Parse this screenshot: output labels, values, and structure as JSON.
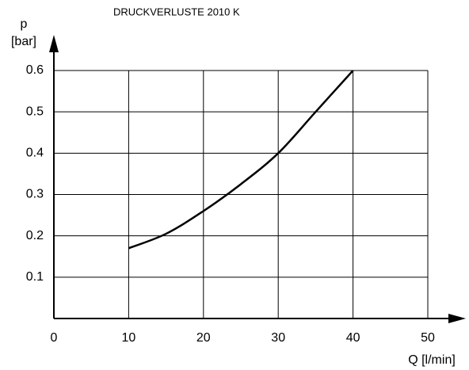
{
  "chart_data": {
    "type": "line",
    "title": "DRUCKVERLUSTE 2010 K",
    "ylabel": "p",
    "yunit": "[bar]",
    "xlabel": "Q [l/min]",
    "x": [
      10,
      15,
      20,
      25,
      30,
      35,
      40
    ],
    "series": [
      {
        "name": "2010 K",
        "color": "#000000",
        "values": [
          0.17,
          0.205,
          0.26,
          0.325,
          0.4,
          0.5,
          0.6
        ]
      }
    ],
    "xlim": [
      0,
      50
    ],
    "xticks": [
      0,
      10,
      20,
      30,
      40,
      50
    ],
    "ylim": [
      0,
      0.6
    ],
    "yticks": [
      0.1,
      0.2,
      0.3,
      0.4,
      0.5,
      0.6
    ],
    "grid": true
  }
}
